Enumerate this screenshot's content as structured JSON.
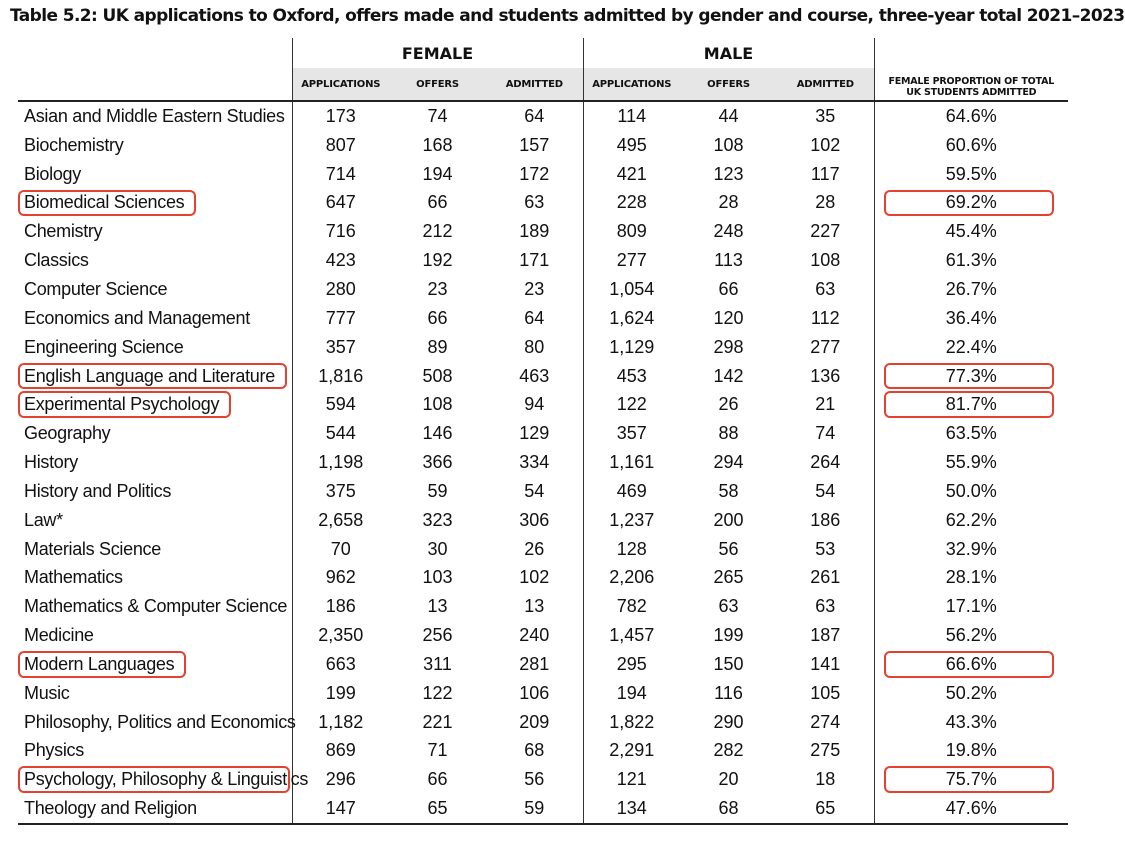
{
  "title": "Table 5.2: UK applications to Oxford, offers made and students admitted by gender and course, three-year total 2021–2023",
  "group_headers": {
    "female": "FEMALE",
    "male": "MALE"
  },
  "sub_headers": {
    "female_applications": "APPLICATIONS",
    "female_offers": "OFFERS",
    "female_admitted": "ADMITTED",
    "male_applications": "APPLICATIONS",
    "male_offers": "OFFERS",
    "male_admitted": "ADMITTED",
    "proportion_line1": "FEMALE PROPORTION OF TOTAL",
    "proportion_line2": "UK STUDENTS ADMITTED"
  },
  "highlight_color": "#e4412f",
  "rows": [
    {
      "course": "Asian and Middle Eastern Studies",
      "f_app": "173",
      "f_off": "74",
      "f_adm": "64",
      "m_app": "114",
      "m_off": "44",
      "m_adm": "35",
      "prop": "64.6%",
      "highlighted": false
    },
    {
      "course": "Biochemistry",
      "f_app": "807",
      "f_off": "168",
      "f_adm": "157",
      "m_app": "495",
      "m_off": "108",
      "m_adm": "102",
      "prop": "60.6%",
      "highlighted": false
    },
    {
      "course": "Biology",
      "f_app": "714",
      "f_off": "194",
      "f_adm": "172",
      "m_app": "421",
      "m_off": "123",
      "m_adm": "117",
      "prop": "59.5%",
      "highlighted": false
    },
    {
      "course": "Biomedical Sciences",
      "f_app": "647",
      "f_off": "66",
      "f_adm": "63",
      "m_app": "228",
      "m_off": "28",
      "m_adm": "28",
      "prop": "69.2%",
      "highlighted": true
    },
    {
      "course": "Chemistry",
      "f_app": "716",
      "f_off": "212",
      "f_adm": "189",
      "m_app": "809",
      "m_off": "248",
      "m_adm": "227",
      "prop": "45.4%",
      "highlighted": false
    },
    {
      "course": "Classics",
      "f_app": "423",
      "f_off": "192",
      "f_adm": "171",
      "m_app": "277",
      "m_off": "113",
      "m_adm": "108",
      "prop": "61.3%",
      "highlighted": false
    },
    {
      "course": "Computer Science",
      "f_app": "280",
      "f_off": "23",
      "f_adm": "23",
      "m_app": "1,054",
      "m_off": "66",
      "m_adm": "63",
      "prop": "26.7%",
      "highlighted": false
    },
    {
      "course": "Economics and Management",
      "f_app": "777",
      "f_off": "66",
      "f_adm": "64",
      "m_app": "1,624",
      "m_off": "120",
      "m_adm": "112",
      "prop": "36.4%",
      "highlighted": false
    },
    {
      "course": "Engineering Science",
      "f_app": "357",
      "f_off": "89",
      "f_adm": "80",
      "m_app": "1,129",
      "m_off": "298",
      "m_adm": "277",
      "prop": "22.4%",
      "highlighted": false
    },
    {
      "course": "English Language and Literature",
      "f_app": "1,816",
      "f_off": "508",
      "f_adm": "463",
      "m_app": "453",
      "m_off": "142",
      "m_adm": "136",
      "prop": "77.3%",
      "highlighted": true
    },
    {
      "course": "Experimental Psychology",
      "f_app": "594",
      "f_off": "108",
      "f_adm": "94",
      "m_app": "122",
      "m_off": "26",
      "m_adm": "21",
      "prop": "81.7%",
      "highlighted": true
    },
    {
      "course": "Geography",
      "f_app": "544",
      "f_off": "146",
      "f_adm": "129",
      "m_app": "357",
      "m_off": "88",
      "m_adm": "74",
      "prop": "63.5%",
      "highlighted": false
    },
    {
      "course": "History",
      "f_app": "1,198",
      "f_off": "366",
      "f_adm": "334",
      "m_app": "1,161",
      "m_off": "294",
      "m_adm": "264",
      "prop": "55.9%",
      "highlighted": false
    },
    {
      "course": "History and Politics",
      "f_app": "375",
      "f_off": "59",
      "f_adm": "54",
      "m_app": "469",
      "m_off": "58",
      "m_adm": "54",
      "prop": "50.0%",
      "highlighted": false
    },
    {
      "course": "Law*",
      "f_app": "2,658",
      "f_off": "323",
      "f_adm": "306",
      "m_app": "1,237",
      "m_off": "200",
      "m_adm": "186",
      "prop": "62.2%",
      "highlighted": false
    },
    {
      "course": "Materials Science",
      "f_app": "70",
      "f_off": "30",
      "f_adm": "26",
      "m_app": "128",
      "m_off": "56",
      "m_adm": "53",
      "prop": "32.9%",
      "highlighted": false
    },
    {
      "course": "Mathematics",
      "f_app": "962",
      "f_off": "103",
      "f_adm": "102",
      "m_app": "2,206",
      "m_off": "265",
      "m_adm": "261",
      "prop": "28.1%",
      "highlighted": false
    },
    {
      "course": "Mathematics & Computer Science",
      "f_app": "186",
      "f_off": "13",
      "f_adm": "13",
      "m_app": "782",
      "m_off": "63",
      "m_adm": "63",
      "prop": "17.1%",
      "highlighted": false
    },
    {
      "course": "Medicine",
      "f_app": "2,350",
      "f_off": "256",
      "f_adm": "240",
      "m_app": "1,457",
      "m_off": "199",
      "m_adm": "187",
      "prop": "56.2%",
      "highlighted": false
    },
    {
      "course": "Modern Languages",
      "f_app": "663",
      "f_off": "311",
      "f_adm": "281",
      "m_app": "295",
      "m_off": "150",
      "m_adm": "141",
      "prop": "66.6%",
      "highlighted": true
    },
    {
      "course": "Music",
      "f_app": "199",
      "f_off": "122",
      "f_adm": "106",
      "m_app": "194",
      "m_off": "116",
      "m_adm": "105",
      "prop": "50.2%",
      "highlighted": false
    },
    {
      "course": "Philosophy, Politics and Economics",
      "f_app": "1,182",
      "f_off": "221",
      "f_adm": "209",
      "m_app": "1,822",
      "m_off": "290",
      "m_adm": "274",
      "prop": "43.3%",
      "highlighted": false
    },
    {
      "course": "Physics",
      "f_app": "869",
      "f_off": "71",
      "f_adm": "68",
      "m_app": "2,291",
      "m_off": "282",
      "m_adm": "275",
      "prop": "19.8%",
      "highlighted": false
    },
    {
      "course": "Psychology, Philosophy & Linguistics",
      "f_app": "296",
      "f_off": "66",
      "f_adm": "56",
      "m_app": "121",
      "m_off": "20",
      "m_adm": "18",
      "prop": "75.7%",
      "highlighted": true
    },
    {
      "course": "Theology and Religion",
      "f_app": "147",
      "f_off": "65",
      "f_adm": "59",
      "m_app": "134",
      "m_off": "68",
      "m_adm": "65",
      "prop": "47.6%",
      "highlighted": false
    }
  ]
}
